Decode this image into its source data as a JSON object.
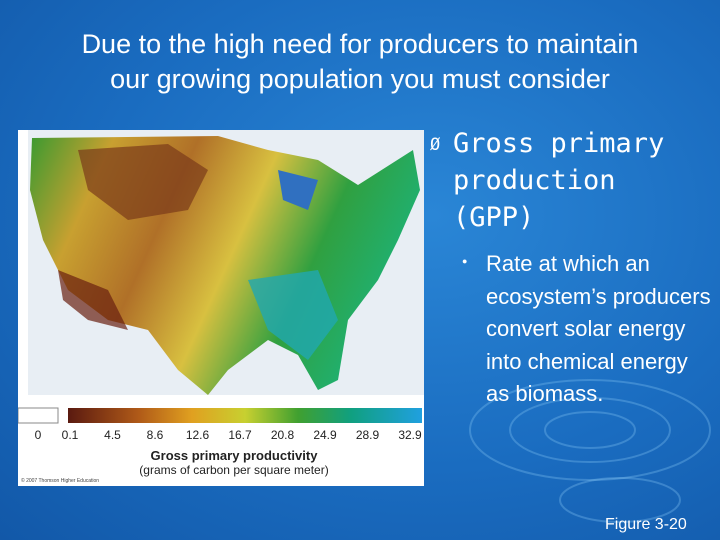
{
  "slide": {
    "title": [
      "Due to the high need for producers to maintain",
      "our growing population you must consider"
    ],
    "bullet": {
      "marker": "Ø",
      "text": [
        "Gross primary",
        "production",
        "(GPP)"
      ]
    },
    "sub_bullet": {
      "marker": "●",
      "text": "Rate at which an ecosystem’s producers convert solar energy into chemical energy as biomass."
    },
    "figure_label": "Figure 3-20",
    "map": {
      "legend_labels": [
        "0",
        "0.1",
        "4.5",
        "8.6",
        "12.6",
        "16.7",
        "20.8",
        "24.9",
        "28.9",
        "32.9"
      ],
      "legend_title": "Gross primary productivity",
      "legend_subtitle": "(grams of carbon per square meter)",
      "credit": "© 2007 Thomson Higher Education"
    }
  }
}
